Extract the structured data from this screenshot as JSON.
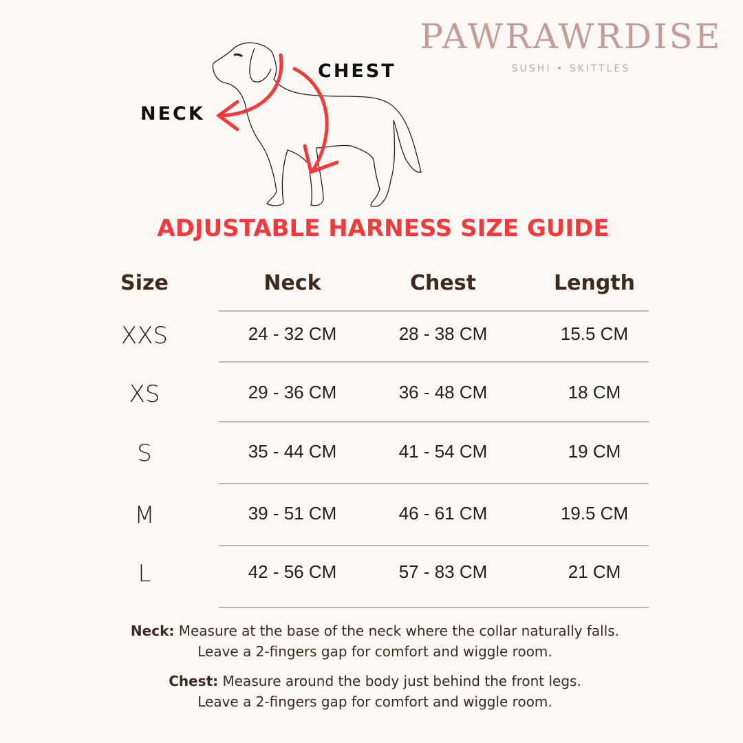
{
  "brand": {
    "name": "PAWRAWRDISE",
    "tagline": "SUSHI • SKITTLES"
  },
  "diagram": {
    "neck_label": "NECK",
    "chest_label": "CHEST",
    "arrow_color": "#f23a3a"
  },
  "title": "ADJUSTABLE HARNESS SIZE GUIDE",
  "table": {
    "headers": [
      "Size",
      "Neck",
      "Chest",
      "Length"
    ],
    "rows": [
      {
        "size": "XXS",
        "neck": "24 - 32 CM",
        "chest": "28 - 38 CM",
        "length": "15.5 CM"
      },
      {
        "size": "XS",
        "neck": "29 - 36 CM",
        "chest": "36 - 48 CM",
        "length": "18 CM"
      },
      {
        "size": "S",
        "neck": "35 - 44 CM",
        "chest": "41 - 54 CM",
        "length": "19 CM"
      },
      {
        "size": "M",
        "neck": "39 - 51 CM",
        "chest": "46 - 61 CM",
        "length": "19.5 CM"
      },
      {
        "size": "L",
        "neck": "42 - 56 CM",
        "chest": "57 - 83 CM",
        "length": "21 CM"
      }
    ]
  },
  "notes": {
    "neck_term": "Neck:",
    "neck_line1": "Measure at the base of the neck where the collar naturally falls.",
    "neck_line2": "Leave a 2-fingers gap for comfort and wiggle room.",
    "chest_term": "Chest:",
    "chest_line1": "Measure around the body just behind the front legs.",
    "chest_line2": "Leave a 2-fingers gap for comfort and wiggle room."
  },
  "colors": {
    "background": "#fcf8f6",
    "accent": "#f23a3a",
    "brand": "#c49d97",
    "heading": "#3e2b1f"
  }
}
